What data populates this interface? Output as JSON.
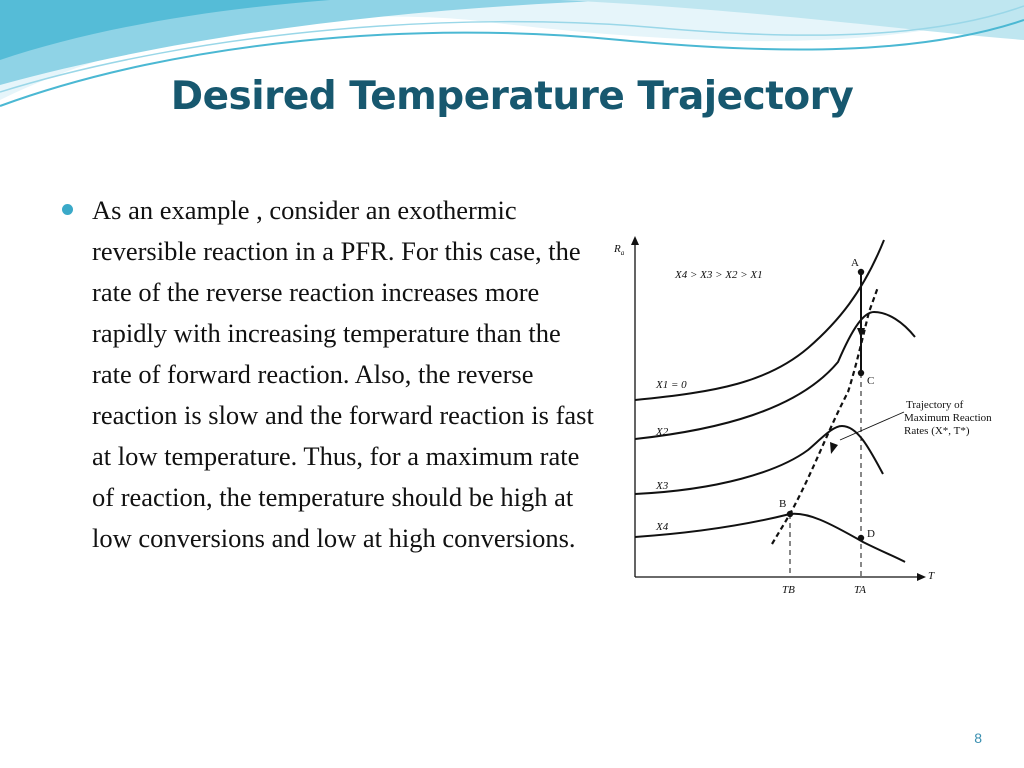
{
  "slide": {
    "title": "Desired Temperature Trajectory",
    "bullets": [
      "As an example , consider an exothermic reversible reaction in a PFR. For this case, the rate of the reverse reaction increases more rapidly with increasing temperature than the rate of forward reaction. Also, the reverse reaction is slow and the forward reaction is fast at low temperature. Thus, for a maximum rate of reaction, the temperature should be high at low conversions and low at high conversions."
    ],
    "page_number": "8"
  },
  "theme": {
    "title_color": "#17586f",
    "bullet_color": "#3aa9c8",
    "wave_dark": "#4bb8d3",
    "wave_light": "#bfe6f0",
    "page_number_color": "#3a8fb0"
  },
  "figure": {
    "y_axis_label": "R",
    "y_axis_subscript": "a",
    "x_axis_label": "T",
    "ordering_note": "X4 > X3 > X2 > X1",
    "curve_labels": [
      "X1 = 0",
      "X2",
      "X3",
      "X4"
    ],
    "points": [
      "A",
      "B",
      "C",
      "D"
    ],
    "tick_labels": [
      "TB",
      "TA"
    ],
    "annotation": [
      "Trajectory of",
      "Maximum Reaction",
      "Rates (X*, T*)"
    ]
  }
}
